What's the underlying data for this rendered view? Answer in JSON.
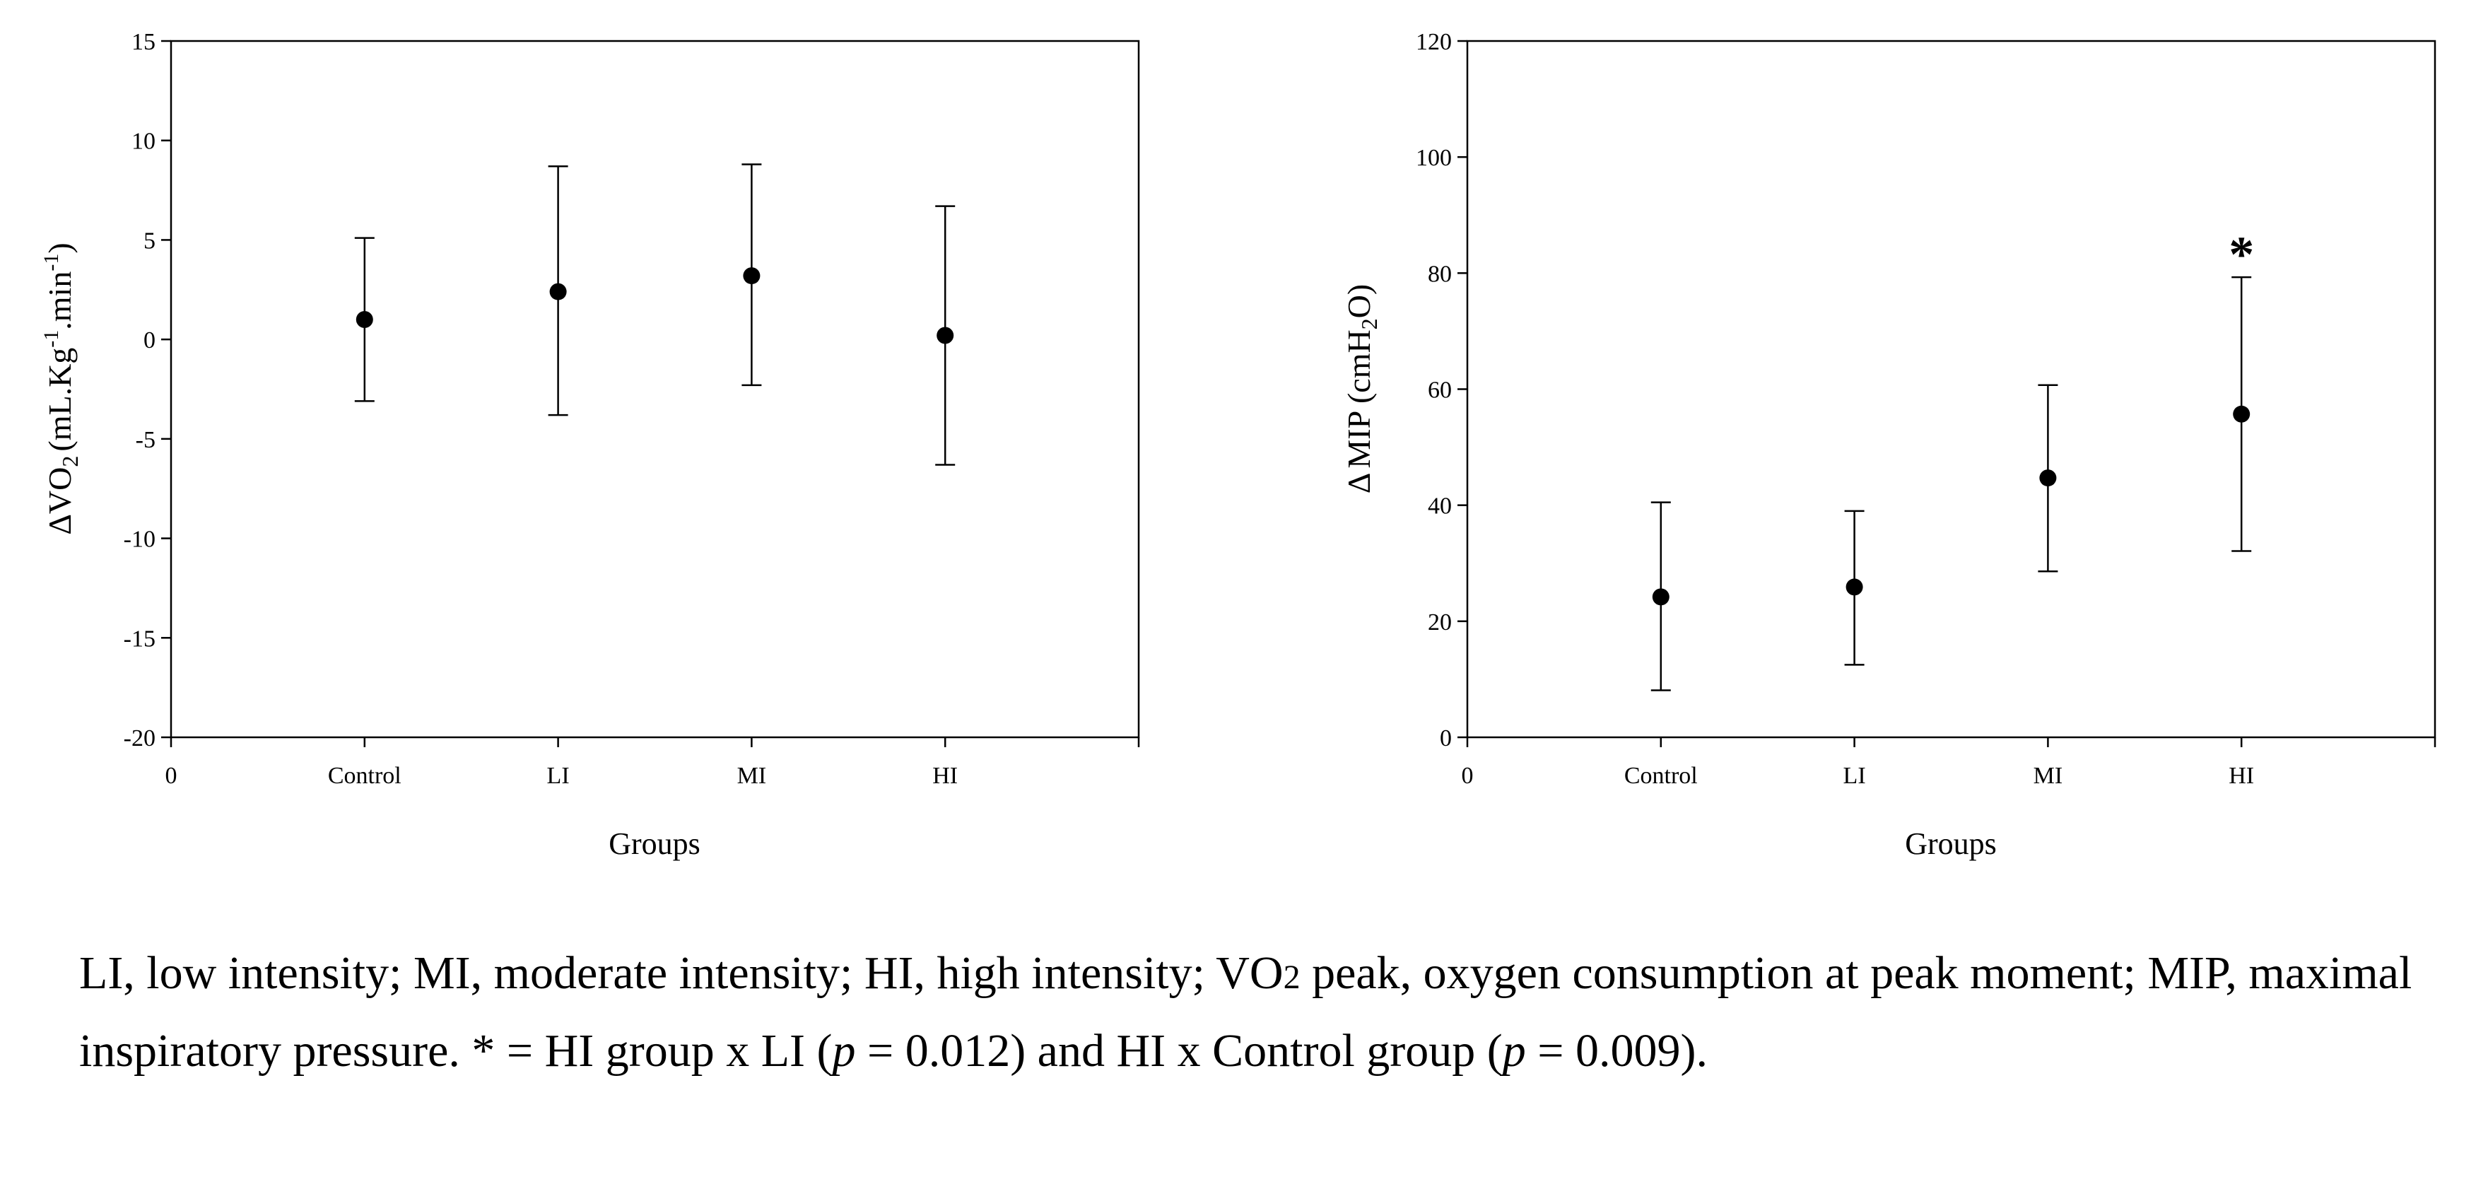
{
  "chart_data": [
    {
      "type": "scatter",
      "id": "vo2",
      "categories": [
        "Control",
        "LI",
        "MI",
        "HI"
      ],
      "x_zero_label": "0",
      "values": [
        1.0,
        2.4,
        3.2,
        0.2
      ],
      "error_upper": [
        5.1,
        8.7,
        8.8,
        6.7
      ],
      "error_lower": [
        -3.1,
        -3.8,
        -2.3,
        -6.3
      ],
      "ylim": [
        -20,
        15
      ],
      "yticks": [
        15,
        10,
        5,
        0,
        -5,
        -10,
        -15,
        -20
      ],
      "xlabel": "Groups",
      "ylabel": {
        "delta": "Δ",
        "main": "VO",
        "sub": "2",
        "open": "(mL.Kg",
        "sup1": "-1",
        "mid": ".min",
        "sup2": "-1",
        "close": ")"
      },
      "annotations": []
    },
    {
      "type": "scatter",
      "id": "mip",
      "categories": [
        "Control",
        "LI",
        "MI",
        "HI"
      ],
      "x_zero_label": "0",
      "values": [
        24.2,
        25.9,
        44.7,
        55.7
      ],
      "error_upper": [
        40.5,
        39.0,
        60.7,
        79.3
      ],
      "error_lower": [
        8.1,
        12.5,
        28.6,
        32.1
      ],
      "ylim": [
        0,
        120
      ],
      "yticks": [
        120,
        100,
        80,
        60,
        40,
        20,
        0
      ],
      "xlabel": "Groups",
      "ylabel": {
        "delta": "Δ",
        "main": "MIP (cmH",
        "sub": "2",
        "close": "O)"
      },
      "annotations": [
        {
          "category": "HI",
          "text": "*"
        }
      ]
    }
  ],
  "caption": {
    "part1": "LI, low intensity; MI, moderate intensity; HI, high intensity; VO",
    "part1_sub": "2",
    "part2": " peak, oxygen consumption at peak moment; MIP, maximal inspiratory pressure. * = HI group x LI (",
    "p1": "p",
    "part3": " = 0.012) and HI x Control group (",
    "p2": "p",
    "part4": " = 0.009)."
  }
}
